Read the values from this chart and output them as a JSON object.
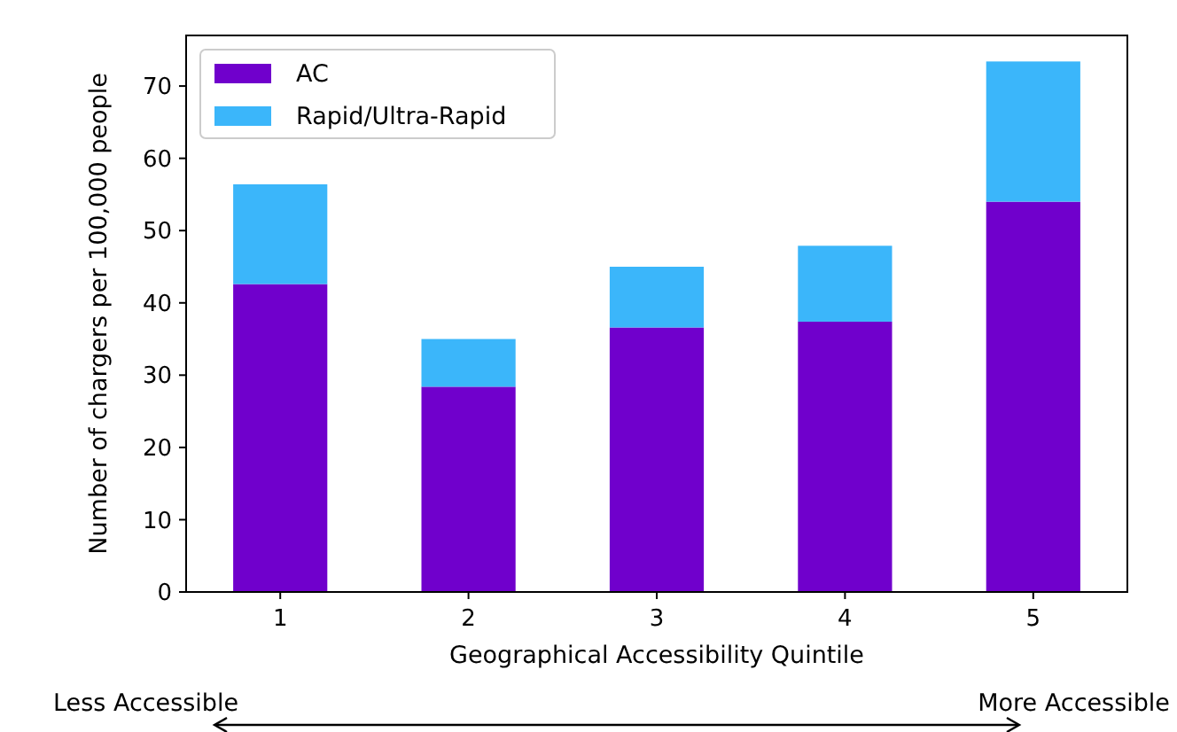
{
  "chart_data": {
    "type": "bar",
    "xlabel": "Geographical Accessibility Quintile",
    "ylabel": "Number of chargers per 100,000 people",
    "categories": [
      "1",
      "2",
      "3",
      "4",
      "5"
    ],
    "stacked": true,
    "series": [
      {
        "name": "AC",
        "color": "#7000cc",
        "values": [
          42.6,
          28.4,
          36.6,
          37.4,
          54.0
        ]
      },
      {
        "name": "Rapid/Ultra-Rapid",
        "color": "#3bb6fa",
        "values": [
          13.8,
          6.6,
          8.4,
          10.5,
          19.4
        ]
      }
    ],
    "ylim": [
      0,
      77
    ],
    "yticks": [
      0,
      10,
      20,
      30,
      40,
      50,
      60,
      70
    ],
    "legend": "top left",
    "grid": false,
    "annotations": [
      "Less Accessible",
      "More Accessible"
    ]
  }
}
